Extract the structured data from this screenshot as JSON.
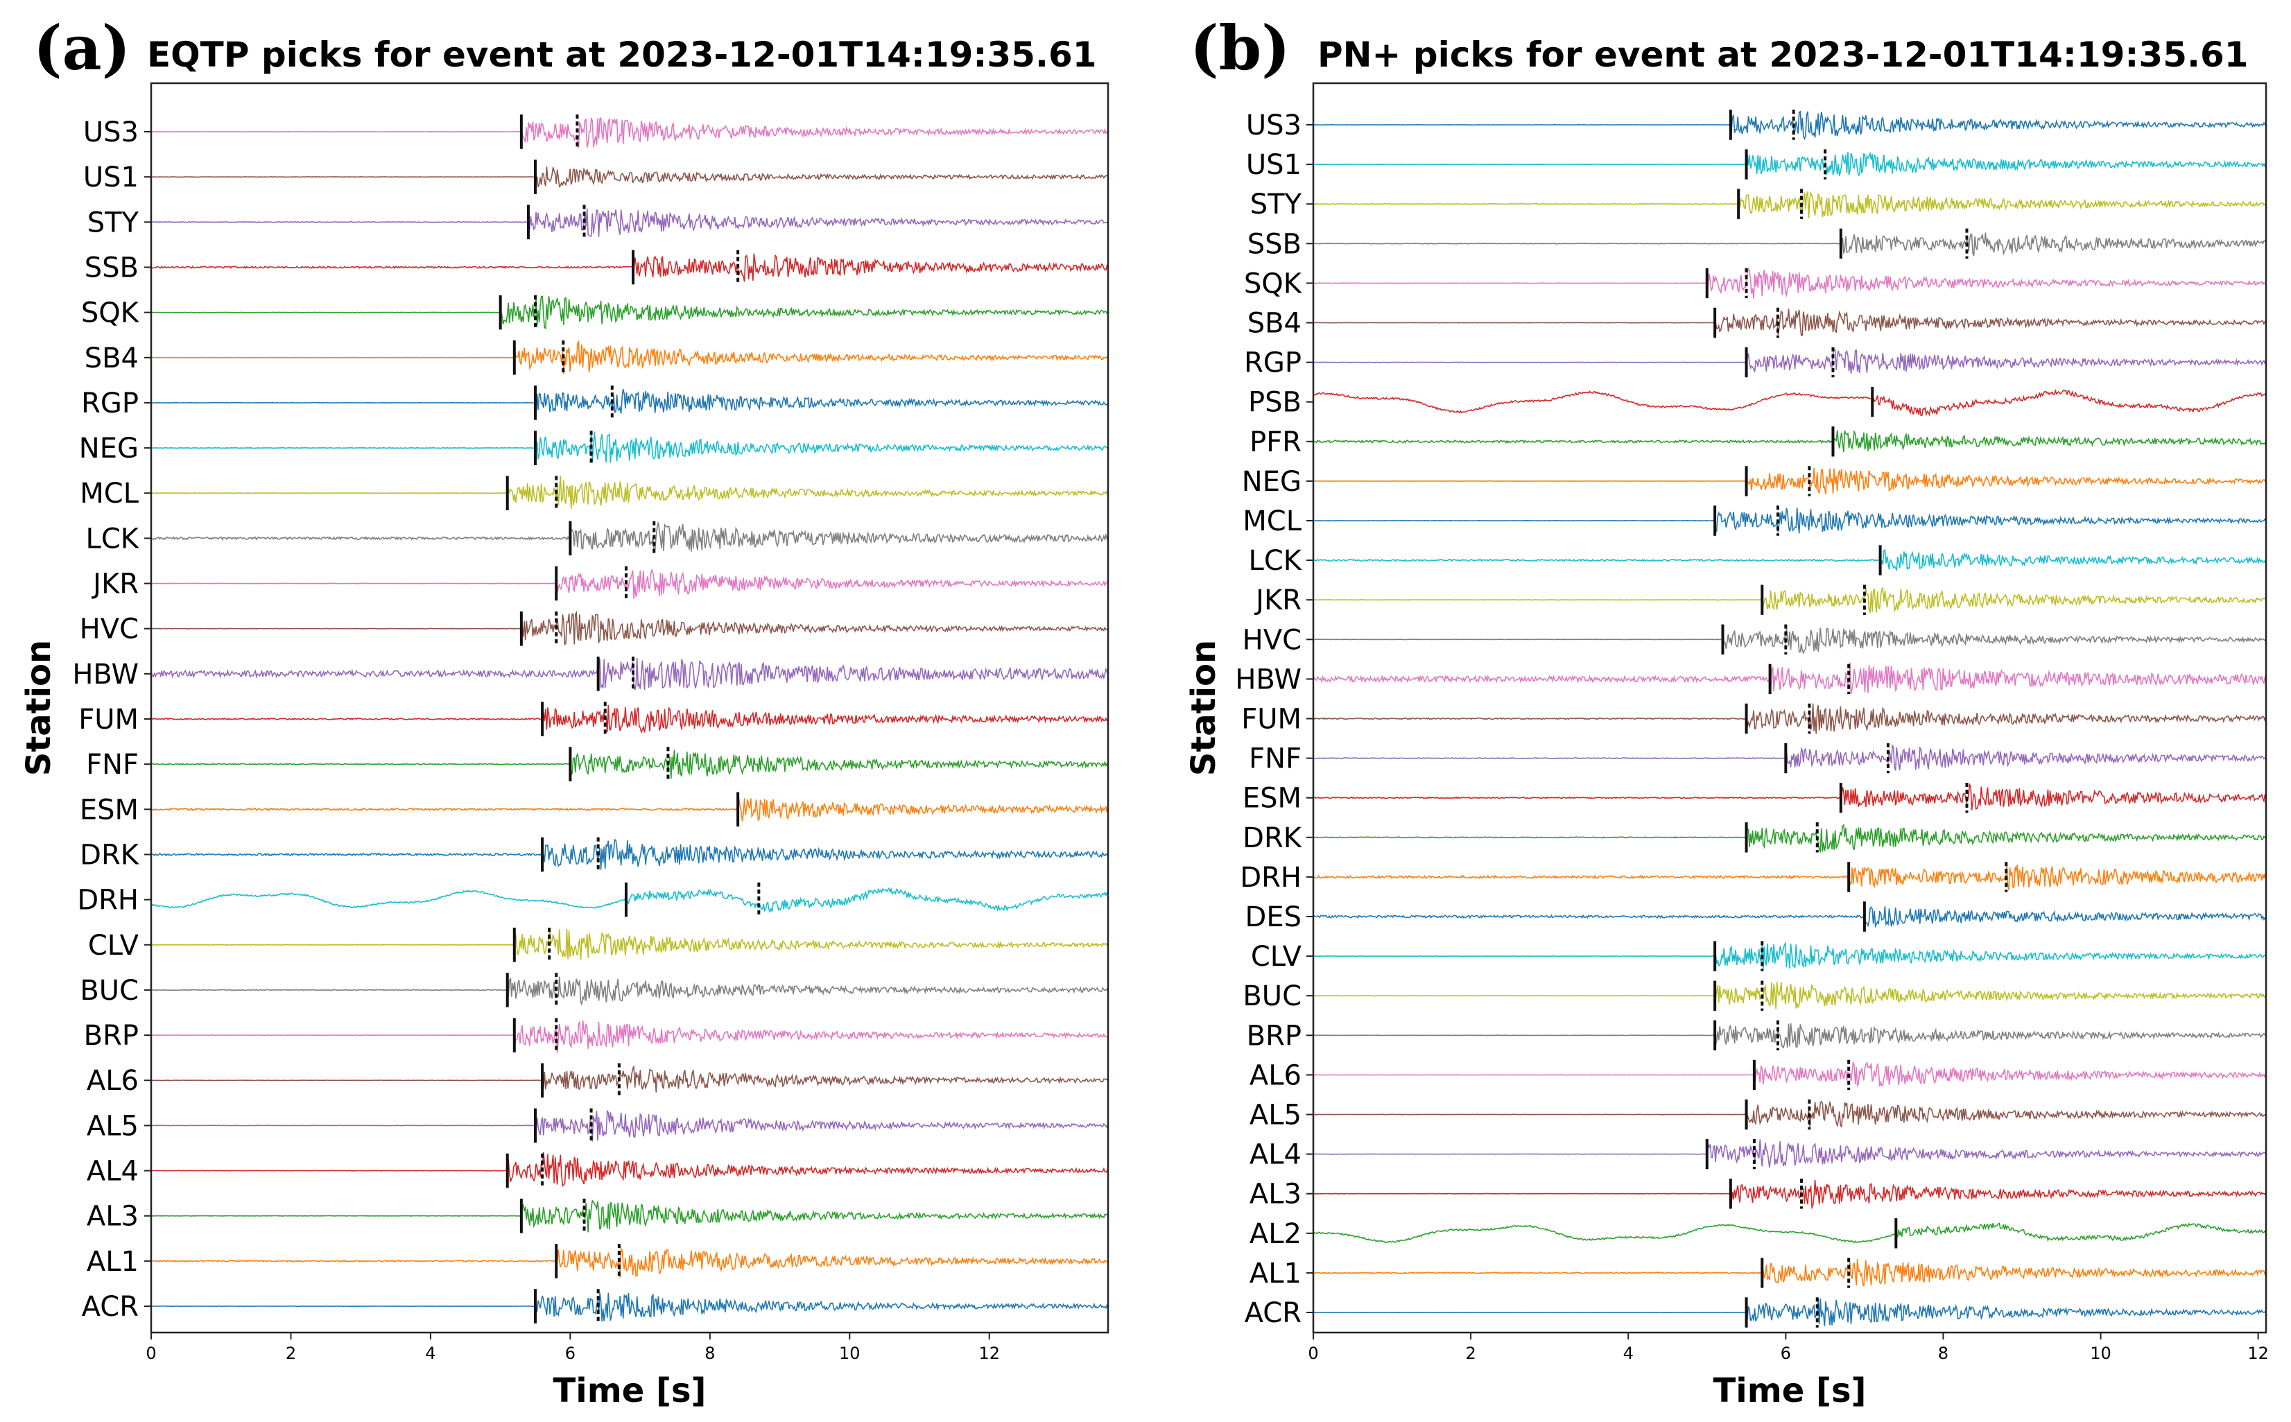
{
  "chart_data": [
    {
      "type": "line",
      "panel": "(a)",
      "title": "EQTP picks for event at 2023-12-01T14:19:35.61",
      "xlabel": "Time [s]",
      "ylabel": "Station",
      "xlim": [
        0,
        13.7
      ],
      "xticks": [
        0,
        2,
        4,
        6,
        8,
        10,
        12
      ],
      "xtick_labels": [
        "0",
        "2",
        "4",
        "6",
        "8",
        "10",
        "12"
      ],
      "stations": [
        {
          "name": "US3",
          "color": "#e377c2",
          "p": 5.3,
          "s": 6.1,
          "noise": 0.05
        },
        {
          "name": "US1",
          "color": "#8c564b",
          "p": 5.5,
          "s": 5.5,
          "noise": 0.05
        },
        {
          "name": "STY",
          "color": "#9467bd",
          "p": 5.4,
          "s": 6.2,
          "noise": 0.1
        },
        {
          "name": "SSB",
          "color": "#d62728",
          "p": 6.9,
          "s": 8.4,
          "noise": 0.25
        },
        {
          "name": "SQK",
          "color": "#2ca02c",
          "p": 5.0,
          "s": 5.5,
          "noise": 0.05
        },
        {
          "name": "SB4",
          "color": "#ff7f0e",
          "p": 5.2,
          "s": 5.9,
          "noise": 0.05
        },
        {
          "name": "RGP",
          "color": "#1f77b4",
          "p": 5.5,
          "s": 6.6,
          "noise": 0.05
        },
        {
          "name": "NEG",
          "color": "#17becf",
          "p": 5.5,
          "s": 6.3,
          "noise": 0.1
        },
        {
          "name": "MCL",
          "color": "#bcbd22",
          "p": 5.1,
          "s": 5.8,
          "noise": 0.05
        },
        {
          "name": "LCK",
          "color": "#7f7f7f",
          "p": 6.0,
          "s": 7.2,
          "noise": 0.35
        },
        {
          "name": "JKR",
          "color": "#e377c2",
          "p": 5.8,
          "s": 6.8,
          "noise": 0.05
        },
        {
          "name": "HVC",
          "color": "#8c564b",
          "p": 5.3,
          "s": 5.8,
          "noise": 0.05
        },
        {
          "name": "HBW",
          "color": "#9467bd",
          "p": 6.4,
          "s": 6.9,
          "noise": 0.9
        },
        {
          "name": "FUM",
          "color": "#d62728",
          "p": 5.6,
          "s": 6.5,
          "noise": 0.2
        },
        {
          "name": "FNF",
          "color": "#2ca02c",
          "p": 6.0,
          "s": 7.4,
          "noise": 0.15
        },
        {
          "name": "ESM",
          "color": "#ff7f0e",
          "p": 8.4,
          "s": 8.4,
          "noise": 0.3
        },
        {
          "name": "DRK",
          "color": "#1f77b4",
          "p": 5.6,
          "s": 6.4,
          "noise": 0.3
        },
        {
          "name": "DRH",
          "color": "#17becf",
          "p": 6.8,
          "s": 8.7,
          "noise": 0.6
        },
        {
          "name": "CLV",
          "color": "#bcbd22",
          "p": 5.2,
          "s": 5.7,
          "noise": 0.05
        },
        {
          "name": "BUC",
          "color": "#7f7f7f",
          "p": 5.1,
          "s": 5.8,
          "noise": 0.1
        },
        {
          "name": "BRP",
          "color": "#e377c2",
          "p": 5.2,
          "s": 5.8,
          "noise": 0.05
        },
        {
          "name": "AL6",
          "color": "#8c564b",
          "p": 5.6,
          "s": 6.7,
          "noise": 0.05
        },
        {
          "name": "AL5",
          "color": "#9467bd",
          "p": 5.5,
          "s": 6.3,
          "noise": 0.05
        },
        {
          "name": "AL4",
          "color": "#d62728",
          "p": 5.1,
          "s": 5.6,
          "noise": 0.05
        },
        {
          "name": "AL3",
          "color": "#2ca02c",
          "p": 5.3,
          "s": 6.2,
          "noise": 0.05
        },
        {
          "name": "AL1",
          "color": "#ff7f0e",
          "p": 5.8,
          "s": 6.7,
          "noise": 0.2
        },
        {
          "name": "ACR",
          "color": "#1f77b4",
          "p": 5.5,
          "s": 6.4,
          "noise": 0.05
        }
      ]
    },
    {
      "type": "line",
      "panel": "(b)",
      "title": "PN+ picks for event at 2023-12-01T14:19:35.61",
      "xlabel": "Time [s]",
      "ylabel": "Station",
      "xlim": [
        0,
        12.1
      ],
      "xticks": [
        0,
        2,
        4,
        6,
        8,
        10,
        12
      ],
      "xtick_labels": [
        "0",
        "2",
        "4",
        "6",
        "8",
        "10",
        "12"
      ],
      "stations": [
        {
          "name": "US3",
          "color": "#1f77b4",
          "p": 5.3,
          "s": 6.1,
          "noise": 0.05
        },
        {
          "name": "US1",
          "color": "#17becf",
          "p": 5.5,
          "s": 6.5,
          "noise": 0.05
        },
        {
          "name": "STY",
          "color": "#bcbd22",
          "p": 5.4,
          "s": 6.2,
          "noise": 0.1
        },
        {
          "name": "SSB",
          "color": "#7f7f7f",
          "p": 6.7,
          "s": 8.3,
          "noise": 0.1
        },
        {
          "name": "SQK",
          "color": "#e377c2",
          "p": 5.0,
          "s": 5.5,
          "noise": 0.05
        },
        {
          "name": "SB4",
          "color": "#8c564b",
          "p": 5.1,
          "s": 5.9,
          "noise": 0.05
        },
        {
          "name": "RGP",
          "color": "#9467bd",
          "p": 5.5,
          "s": 6.6,
          "noise": 0.05
        },
        {
          "name": "PSB",
          "color": "#d62728",
          "p": 7.1,
          "s": 7.1,
          "noise": 0.8
        },
        {
          "name": "PFR",
          "color": "#2ca02c",
          "p": 6.6,
          "s": 6.6,
          "noise": 0.4
        },
        {
          "name": "NEG",
          "color": "#ff7f0e",
          "p": 5.5,
          "s": 6.3,
          "noise": 0.05
        },
        {
          "name": "MCL",
          "color": "#1f77b4",
          "p": 5.1,
          "s": 5.9,
          "noise": 0.05
        },
        {
          "name": "LCK",
          "color": "#17becf",
          "p": 7.2,
          "s": 7.2,
          "noise": 0.3
        },
        {
          "name": "JKR",
          "color": "#bcbd22",
          "p": 5.7,
          "s": 7.0,
          "noise": 0.05
        },
        {
          "name": "HVC",
          "color": "#7f7f7f",
          "p": 5.2,
          "s": 6.0,
          "noise": 0.05
        },
        {
          "name": "HBW",
          "color": "#e377c2",
          "p": 5.8,
          "s": 6.8,
          "noise": 0.9
        },
        {
          "name": "FUM",
          "color": "#8c564b",
          "p": 5.5,
          "s": 6.3,
          "noise": 0.2
        },
        {
          "name": "FNF",
          "color": "#9467bd",
          "p": 6.0,
          "s": 7.3,
          "noise": 0.15
        },
        {
          "name": "ESM",
          "color": "#d62728",
          "p": 6.7,
          "s": 8.3,
          "noise": 0.2
        },
        {
          "name": "DRK",
          "color": "#2ca02c",
          "p": 5.5,
          "s": 6.4,
          "noise": 0.15
        },
        {
          "name": "DRH",
          "color": "#ff7f0e",
          "p": 6.8,
          "s": 8.8,
          "noise": 0.4
        },
        {
          "name": "DES",
          "color": "#1f77b4",
          "p": 7.0,
          "s": 7.0,
          "noise": 0.4
        },
        {
          "name": "CLV",
          "color": "#17becf",
          "p": 5.1,
          "s": 5.7,
          "noise": 0.05
        },
        {
          "name": "BUC",
          "color": "#bcbd22",
          "p": 5.1,
          "s": 5.7,
          "noise": 0.05
        },
        {
          "name": "BRP",
          "color": "#7f7f7f",
          "p": 5.1,
          "s": 5.9,
          "noise": 0.05
        },
        {
          "name": "AL6",
          "color": "#e377c2",
          "p": 5.6,
          "s": 6.8,
          "noise": 0.05
        },
        {
          "name": "AL5",
          "color": "#8c564b",
          "p": 5.5,
          "s": 6.3,
          "noise": 0.05
        },
        {
          "name": "AL4",
          "color": "#9467bd",
          "p": 5.0,
          "s": 5.6,
          "noise": 0.05
        },
        {
          "name": "AL3",
          "color": "#d62728",
          "p": 5.3,
          "s": 6.2,
          "noise": 0.05
        },
        {
          "name": "AL2",
          "color": "#2ca02c",
          "p": 7.4,
          "s": 7.4,
          "noise": 0.7
        },
        {
          "name": "AL1",
          "color": "#ff7f0e",
          "p": 5.7,
          "s": 6.8,
          "noise": 0.2
        },
        {
          "name": "ACR",
          "color": "#1f77b4",
          "p": 5.5,
          "s": 6.4,
          "noise": 0.05
        }
      ]
    }
  ]
}
